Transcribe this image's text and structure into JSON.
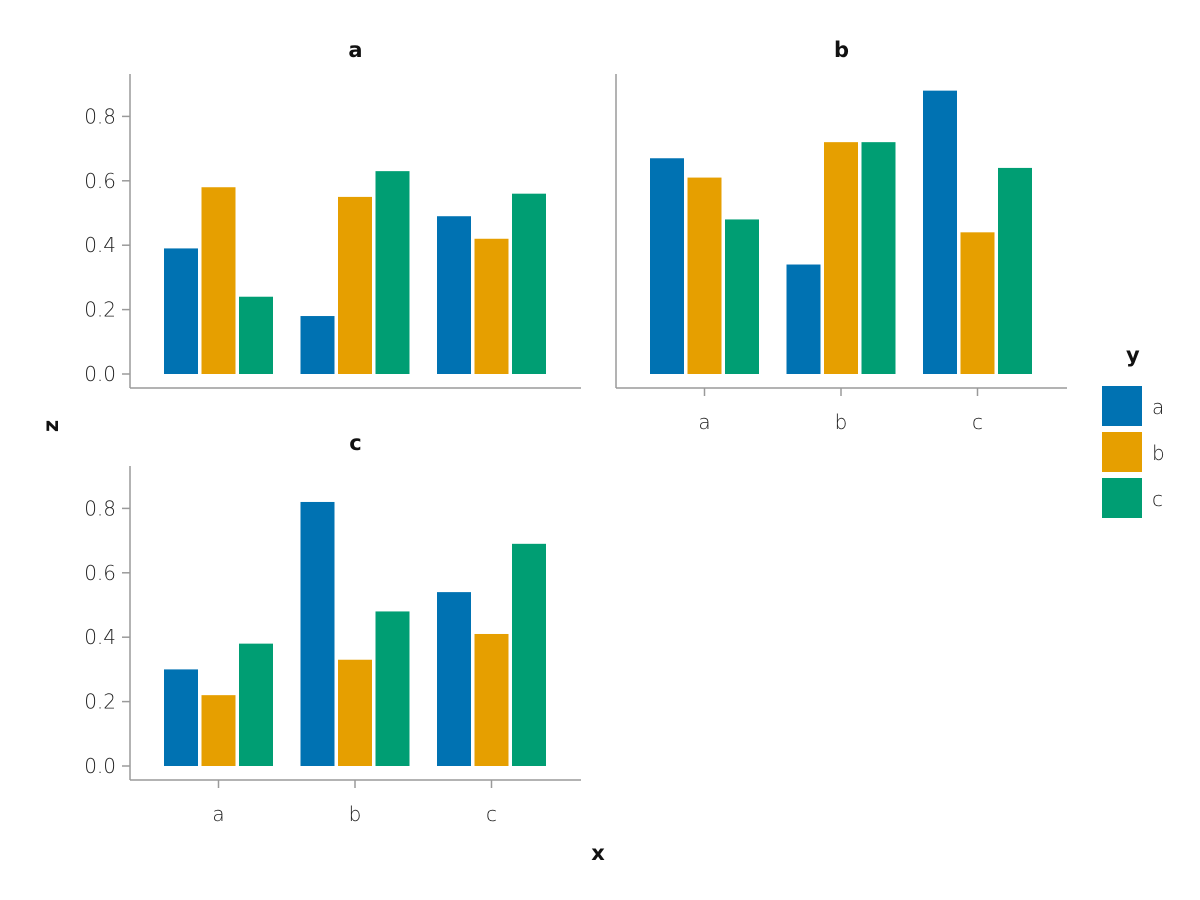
{
  "chart_data": {
    "type": "bar",
    "x_axis_title": "x",
    "y_axis_title": "z",
    "legend": {
      "title": "y",
      "position": "right",
      "entries": [
        {
          "label": "a",
          "color": "#0072B2"
        },
        {
          "label": "b",
          "color": "#E69F00"
        },
        {
          "label": "c",
          "color": "#009E73"
        }
      ]
    },
    "categories": [
      "a",
      "b",
      "c"
    ],
    "y_ticks": [
      "0.0",
      "0.2",
      "0.4",
      "0.6",
      "0.8"
    ],
    "y_tick_values": [
      0,
      0.2,
      0.4,
      0.6,
      0.8
    ],
    "ylim": [
      0,
      0.93
    ],
    "grid": false,
    "panels": [
      {
        "title": "a",
        "series": [
          {
            "name": "a",
            "values": [
              0.39,
              0.18,
              0.49
            ]
          },
          {
            "name": "b",
            "values": [
              0.58,
              0.55,
              0.42
            ]
          },
          {
            "name": "c",
            "values": [
              0.24,
              0.63,
              0.56
            ]
          }
        ]
      },
      {
        "title": "b",
        "series": [
          {
            "name": "a",
            "values": [
              0.67,
              0.34,
              0.88
            ]
          },
          {
            "name": "b",
            "values": [
              0.61,
              0.72,
              0.44
            ]
          },
          {
            "name": "c",
            "values": [
              0.48,
              0.72,
              0.64
            ]
          }
        ]
      },
      {
        "title": "c",
        "series": [
          {
            "name": "a",
            "values": [
              0.3,
              0.82,
              0.54
            ]
          },
          {
            "name": "b",
            "values": [
              0.22,
              0.33,
              0.41
            ]
          },
          {
            "name": "c",
            "values": [
              0.38,
              0.48,
              0.69
            ]
          }
        ]
      }
    ]
  }
}
